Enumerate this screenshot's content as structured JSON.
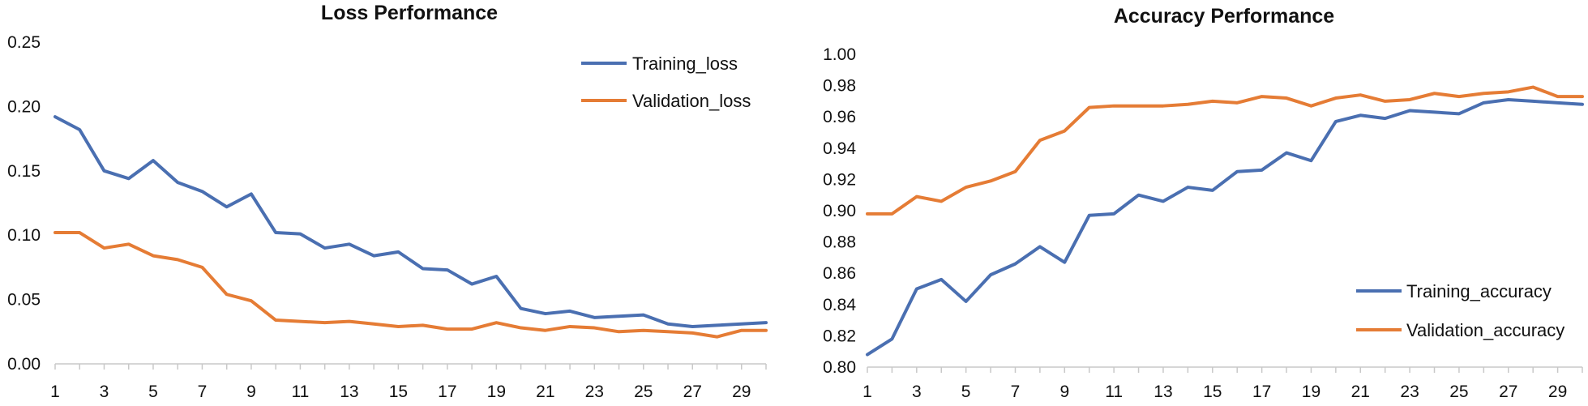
{
  "chart_data": [
    {
      "type": "line",
      "title": "Loss Performance",
      "xlabel": "",
      "ylabel": "",
      "x": [
        1,
        2,
        3,
        4,
        5,
        6,
        7,
        8,
        9,
        10,
        11,
        12,
        13,
        14,
        15,
        16,
        17,
        18,
        19,
        20,
        21,
        22,
        23,
        24,
        25,
        26,
        27,
        28,
        29,
        30
      ],
      "x_tick_labels": [
        "1",
        "3",
        "5",
        "7",
        "9",
        "11",
        "13",
        "15",
        "17",
        "19",
        "21",
        "23",
        "25",
        "27",
        "29"
      ],
      "ylim": [
        0,
        0.25
      ],
      "y_tick_labels": [
        "0.00",
        "0.05",
        "0.10",
        "0.15",
        "0.20",
        "0.25"
      ],
      "y_ticks": [
        0,
        0.05,
        0.1,
        0.15,
        0.2,
        0.25
      ],
      "legend_position": "top-right",
      "series": [
        {
          "name": "Training_loss",
          "color": "#4a6fb1",
          "values": [
            0.192,
            0.182,
            0.15,
            0.144,
            0.158,
            0.141,
            0.134,
            0.122,
            0.132,
            0.102,
            0.101,
            0.09,
            0.093,
            0.084,
            0.087,
            0.074,
            0.073,
            0.062,
            0.068,
            0.043,
            0.039,
            0.041,
            0.036,
            0.037,
            0.038,
            0.031,
            0.029,
            0.03,
            0.031,
            0.032
          ]
        },
        {
          "name": "Validation_loss",
          "color": "#e57c35",
          "values": [
            0.102,
            0.102,
            0.09,
            0.093,
            0.084,
            0.081,
            0.075,
            0.054,
            0.049,
            0.034,
            0.033,
            0.032,
            0.033,
            0.031,
            0.029,
            0.03,
            0.027,
            0.027,
            0.032,
            0.028,
            0.026,
            0.029,
            0.028,
            0.025,
            0.026,
            0.025,
            0.024,
            0.021,
            0.026,
            0.026
          ]
        }
      ]
    },
    {
      "type": "line",
      "title": "Accuracy Performance",
      "xlabel": "",
      "ylabel": "",
      "x": [
        1,
        2,
        3,
        4,
        5,
        6,
        7,
        8,
        9,
        10,
        11,
        12,
        13,
        14,
        15,
        16,
        17,
        18,
        19,
        20,
        21,
        22,
        23,
        24,
        25,
        26,
        27,
        28,
        29,
        30
      ],
      "x_tick_labels": [
        "1",
        "3",
        "5",
        "7",
        "9",
        "11",
        "13",
        "15",
        "17",
        "19",
        "21",
        "23",
        "25",
        "27",
        "29"
      ],
      "ylim": [
        0.8,
        1.0
      ],
      "y_tick_labels": [
        "0.80",
        "0.82",
        "0.84",
        "0.86",
        "0.88",
        "0.90",
        "0.92",
        "0.94",
        "0.96",
        "0.98",
        "1.00"
      ],
      "y_ticks": [
        0.8,
        0.82,
        0.84,
        0.86,
        0.88,
        0.9,
        0.92,
        0.94,
        0.96,
        0.98,
        1.0
      ],
      "legend_position": "bottom-right",
      "series": [
        {
          "name": "Training_accuracy",
          "color": "#4a6fb1",
          "values": [
            0.808,
            0.818,
            0.85,
            0.856,
            0.842,
            0.859,
            0.866,
            0.877,
            0.867,
            0.897,
            0.898,
            0.91,
            0.906,
            0.915,
            0.913,
            0.925,
            0.926,
            0.937,
            0.932,
            0.957,
            0.961,
            0.959,
            0.964,
            0.963,
            0.962,
            0.969,
            0.971,
            0.97,
            0.969,
            0.968
          ]
        },
        {
          "name": "Validation_accuracy",
          "color": "#e57c35",
          "values": [
            0.898,
            0.898,
            0.909,
            0.906,
            0.915,
            0.919,
            0.925,
            0.945,
            0.951,
            0.966,
            0.967,
            0.967,
            0.967,
            0.968,
            0.97,
            0.969,
            0.973,
            0.972,
            0.967,
            0.972,
            0.974,
            0.97,
            0.971,
            0.975,
            0.973,
            0.975,
            0.976,
            0.979,
            0.973,
            0.973
          ]
        }
      ]
    }
  ]
}
